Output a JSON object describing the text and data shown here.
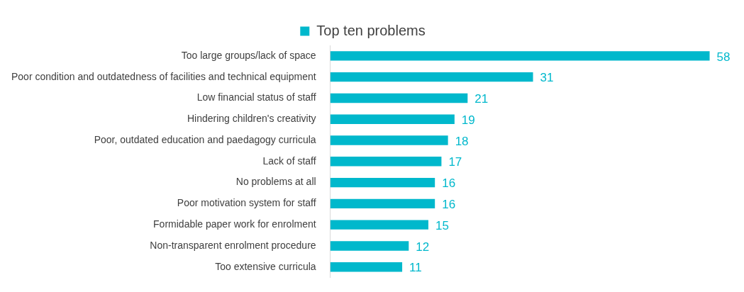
{
  "chart_data": {
    "type": "bar",
    "orientation": "horizontal",
    "categories": [
      "Too large groups/lack of space",
      "Poor condition and outdatedness of facilities and technical equipment",
      "Low financial status of staff",
      "Hindering children's creativity",
      "Poor, outdated education and paedagogy curricula",
      "Lack of staff",
      "No problems at all",
      "Poor motivation system for staff",
      "Formidable paper work for enrolment",
      "Non-transparent enrolment procedure",
      "Too extensive curricula"
    ],
    "series": [
      {
        "name": "Top ten problems",
        "color": "#00b8cc",
        "values": [
          58,
          31,
          21,
          19,
          18,
          17,
          16,
          16,
          15,
          12,
          11
        ]
      }
    ],
    "data_labels": true,
    "legend": "top",
    "grid": false,
    "tick_labels": "y"
  }
}
